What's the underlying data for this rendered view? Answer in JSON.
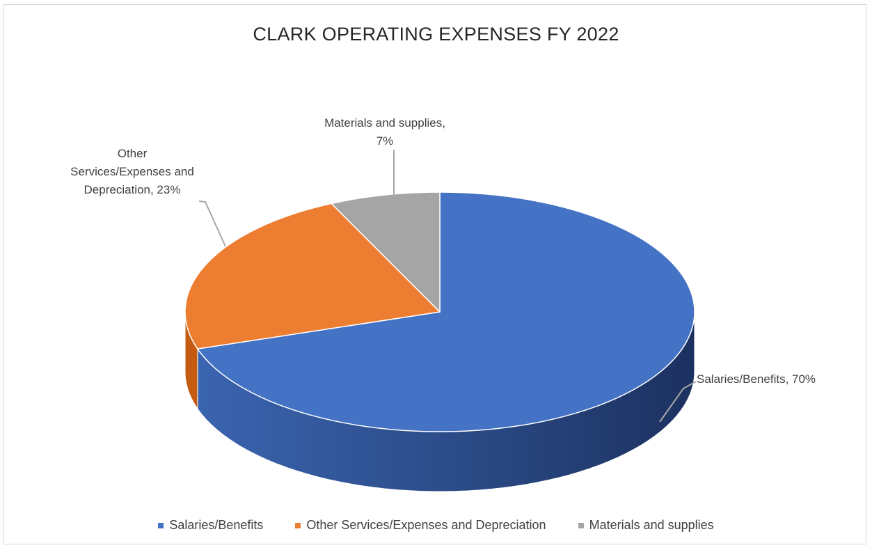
{
  "chart_data": {
    "type": "pie",
    "title": "CLARK OPERATING EXPENSES FY 2022",
    "legend_position": "bottom",
    "slices": [
      {
        "name": "Salaries/Benefits",
        "value": 70,
        "label": "Salaries/Benefits, 70%",
        "color": "#4472c4",
        "side_colors": [
          "#2f528f",
          "#1f3864"
        ]
      },
      {
        "name": "Other Services/Expenses and Depreciation",
        "value": 23,
        "label": "Other Services/Expenses and Depreciation, 23%",
        "color": "#ed7d31",
        "side_colors": [
          "#c55a11",
          "#843c0c"
        ]
      },
      {
        "name": "Materials and supplies",
        "value": 7,
        "label": "Materials and supplies, 7%",
        "color": "#a5a5a5",
        "side_colors": [
          "#7f7f7f",
          "#595959"
        ]
      }
    ]
  }
}
